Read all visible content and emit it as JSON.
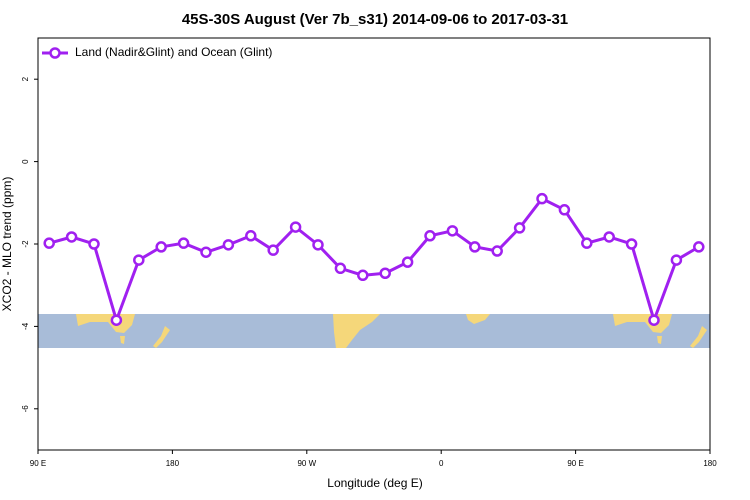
{
  "chart_data": {
    "type": "line",
    "title": "45S-30S August (Ver 7b_s31)   2014-09-06 to 2017-03-31",
    "x_label": "Longitude (deg E)",
    "y_label": "XCO2 - MLO trend (ppm)",
    "x": [
      97.5,
      112.5,
      127.5,
      142.5,
      157.5,
      172.5,
      187.5,
      202.5,
      217.5,
      232.5,
      247.5,
      262.5,
      277.5,
      292.5,
      307.5,
      322.5,
      337.5,
      352.5,
      367.5,
      382.5,
      397.5,
      412.5,
      427.5,
      442.5,
      457.5,
      472.5,
      487.5,
      502.5,
      517.5,
      532.5
    ],
    "series": [
      {
        "name": "Land (Nadir&Glint) and Ocean (Glint)",
        "color": "#a020f0",
        "values": [
          -1.98,
          -1.83,
          -2.0,
          -3.85,
          -2.39,
          -2.07,
          -1.98,
          -2.2,
          -2.02,
          -1.8,
          -2.15,
          -1.59,
          -2.02,
          -2.59,
          -2.76,
          -2.71,
          -2.44,
          -1.8,
          -1.68,
          -2.07,
          -2.17,
          -1.61,
          -0.9,
          -1.17,
          -1.98,
          -1.83,
          -2.0,
          -3.85,
          -2.39,
          -2.07
        ]
      }
    ],
    "xlim": [
      90,
      540
    ],
    "ylim": [
      -7,
      3
    ],
    "xticks": [
      {
        "value": 90,
        "label": "90 E"
      },
      180,
      {
        "value": 270,
        "label": "90 W"
      },
      {
        "value": 360,
        "label": "0"
      },
      {
        "value": 450,
        "label": "90 E"
      },
      {
        "value": 540,
        "label": "180"
      }
    ],
    "yticks": [
      2,
      0,
      -2,
      -4,
      -6
    ],
    "legend": "top-left"
  }
}
